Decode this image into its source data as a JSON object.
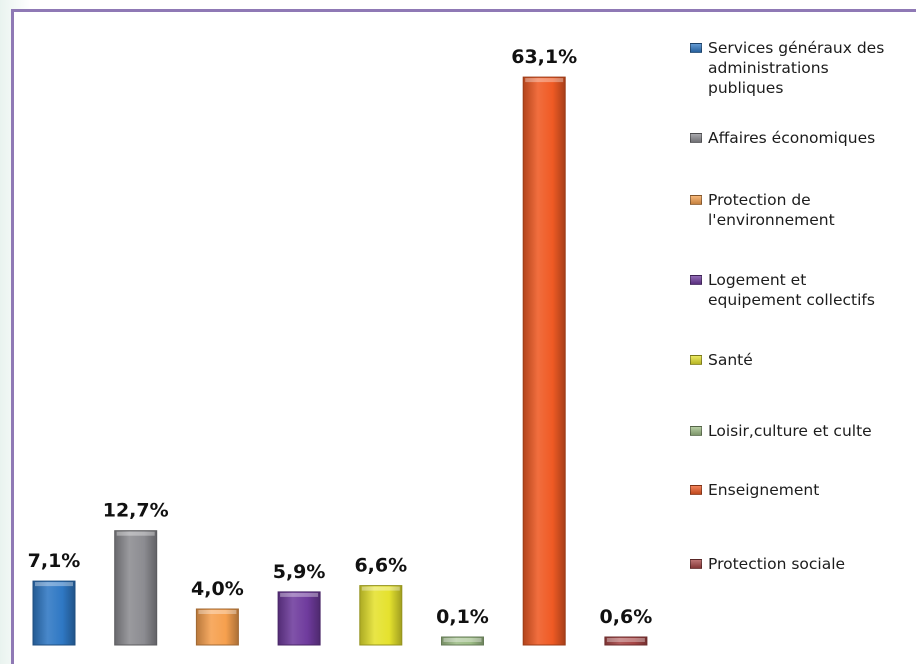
{
  "chart_data": {
    "type": "bar",
    "categories": [
      "Services généraux des administrations publiques",
      "Affaires économiques",
      "Protection de l'environnement",
      "Logement et equipement collectifs",
      "Santé",
      "Loisir,culture et culte",
      "Enseignement",
      "Protection sociale"
    ],
    "values": [
      7.1,
      12.7,
      4.0,
      5.9,
      6.6,
      0.1,
      63.1,
      0.6
    ],
    "value_labels": [
      "7,1%",
      "12,7%",
      "4,0%",
      "5,9%",
      "6,6%",
      "0,1%",
      "63,1%",
      "0,6%"
    ],
    "colors": [
      "#2f78c4",
      "#8c8c91",
      "#f6a04e",
      "#6f3b9d",
      "#e5e22e",
      "#9dbd86",
      "#ef5a24",
      "#a64545"
    ],
    "ylim": [
      0,
      65
    ],
    "grid": false,
    "legend_position": "right",
    "legend": [
      {
        "label_lines": [
          "Services généraux des",
          "administrations",
          "publiques"
        ],
        "color": "#2f78c4"
      },
      {
        "label_lines": [
          "Affaires économiques"
        ],
        "color": "#8c8c91"
      },
      {
        "label_lines": [
          "Protection de",
          "l'environnement"
        ],
        "color": "#f6a04e"
      },
      {
        "label_lines": [
          "Logement et",
          "equipement collectifs"
        ],
        "color": "#6f3b9d"
      },
      {
        "label_lines": [
          "Santé"
        ],
        "color": "#e5e22e"
      },
      {
        "label_lines": [
          "Loisir,culture et culte"
        ],
        "color": "#9dbd86"
      },
      {
        "label_lines": [
          "Enseignement"
        ],
        "color": "#ef5a24"
      },
      {
        "label_lines": [
          "Protection sociale"
        ],
        "color": "#a64545"
      }
    ]
  }
}
